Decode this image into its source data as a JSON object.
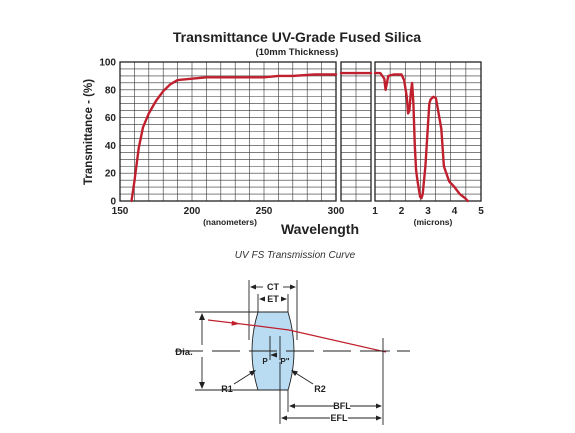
{
  "chart_data": {
    "type": "line",
    "title": "Transmittance UV-Grade Fused Silica",
    "subtitle": "(10mm Thickness)",
    "ylabel": "Transmittance - (%)",
    "xlabel": "Wavelength",
    "ylim": [
      0,
      100
    ],
    "yticks": [
      "0",
      "20",
      "40",
      "60",
      "80",
      "100"
    ],
    "grid": true,
    "panels": [
      {
        "name": "nanometers",
        "unit_label": "(nanometers)",
        "xlim": [
          150,
          300
        ],
        "xticks": [
          "150",
          "200",
          "250",
          "300"
        ],
        "series": [
          {
            "x": [
              158,
              160,
              163,
              166,
              170,
              175,
              180,
              185,
              190,
              200,
              210,
              230,
              250,
              260,
              270,
              285,
              300
            ],
            "y": [
              0,
              14,
              38,
              53,
              63,
              72,
              79,
              84,
              87,
              88,
              89,
              89,
              89,
              90,
              90,
              91,
              91
            ]
          }
        ]
      },
      {
        "name": "mid-gap",
        "unit_label": "",
        "xlim": [
          0,
          1
        ],
        "xticks": [],
        "series": [
          {
            "x": [
              0,
              1
            ],
            "y": [
              92,
              92
            ]
          }
        ]
      },
      {
        "name": "microns",
        "unit_label": "(microns)",
        "xlim": [
          1,
          5
        ],
        "xticks": [
          "1",
          "2",
          "3",
          "4",
          "5"
        ],
        "series": [
          {
            "x": [
              1.0,
              1.2,
              1.35,
              1.4,
              1.5,
              1.7,
              2.0,
              2.1,
              2.2,
              2.25,
              2.3,
              2.35,
              2.4,
              2.45,
              2.5,
              2.55,
              2.6,
              2.7,
              2.75,
              2.8,
              2.9,
              3.0,
              3.05,
              3.1,
              3.2,
              3.3,
              3.5,
              3.6,
              3.8,
              4.0,
              4.2,
              4.4,
              4.5
            ],
            "y": [
              92,
              92,
              88,
              80,
              90,
              91,
              91,
              87,
              75,
              63,
              65,
              78,
              85,
              70,
              40,
              22,
              15,
              3,
              2,
              5,
              25,
              55,
              70,
              73,
              75,
              74,
              52,
              25,
              14,
              10,
              5,
              2,
              0
            ]
          }
        ]
      }
    ]
  },
  "caption": "UV FS Transmission Curve",
  "lens_diagram": {
    "labels": {
      "ct": "CT",
      "et": "ET",
      "dia": "Dia.",
      "p": "P",
      "p_prime": "P\"",
      "r1": "R1",
      "r2": "R2",
      "bfl": "BFL",
      "efl": "EFL"
    },
    "colors": {
      "lens_fill": "#b9dcf3",
      "ray": "#c0202e",
      "line": "#222222"
    }
  }
}
